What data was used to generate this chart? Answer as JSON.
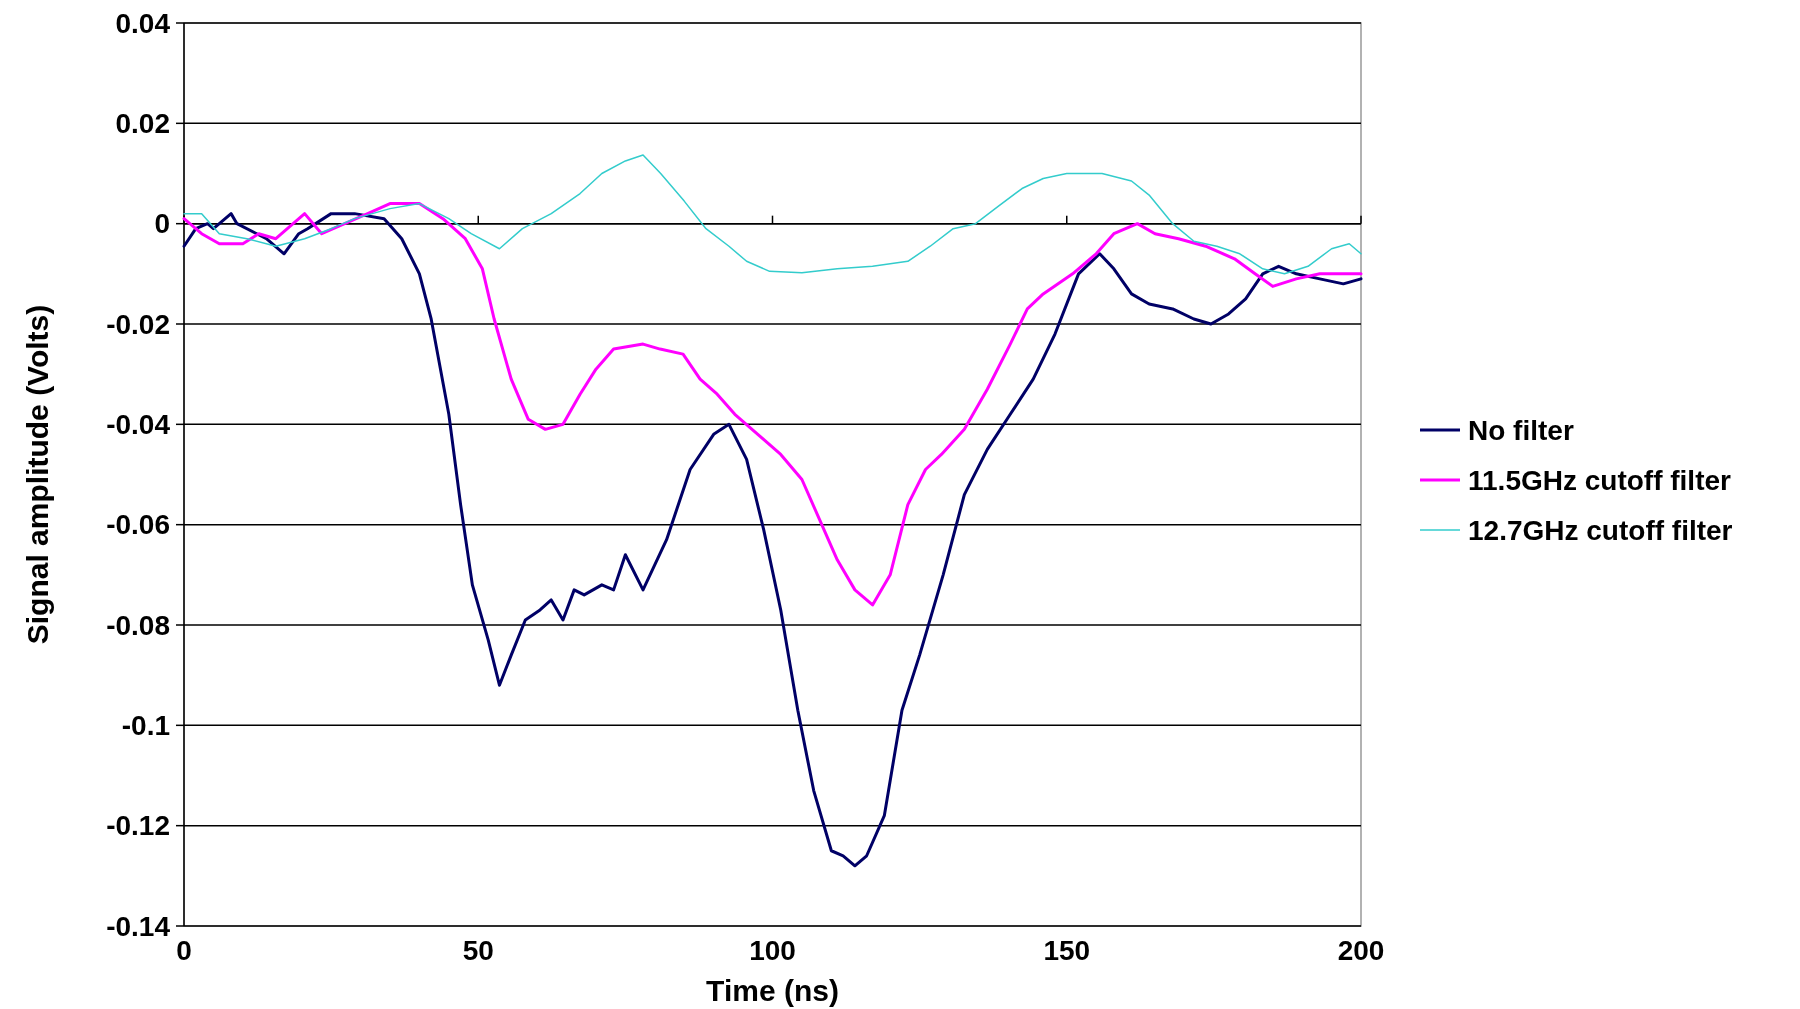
{
  "chart_data": {
    "type": "line",
    "xlabel": "Time (ns)",
    "ylabel": "Signal amplitude (Volts)",
    "xlim": [
      0,
      200
    ],
    "xticks": [
      0,
      50,
      100,
      150,
      200
    ],
    "ylim": [
      -0.14,
      0.04
    ],
    "yticks": [
      -0.14,
      -0.12,
      -0.1,
      -0.08,
      -0.06,
      -0.04,
      -0.02,
      0,
      0.02,
      0.04
    ],
    "grid": "y",
    "legend": "right",
    "marker": "none",
    "line_style": "solid",
    "series": [
      {
        "name": "No filter",
        "color": "#000066",
        "x": [
          0,
          2,
          4,
          5,
          8,
          9,
          14,
          17,
          19.5,
          21,
          25,
          29,
          34,
          37,
          40,
          42,
          45,
          47,
          49,
          51.7,
          53.6,
          55.6,
          58,
          60.5,
          62.4,
          64.4,
          66.3,
          68,
          71,
          73,
          75,
          78,
          82,
          86,
          90,
          92.6,
          95.6,
          98.5,
          101.4,
          104.3,
          107,
          110,
          112,
          114,
          116,
          119,
          122,
          125,
          129,
          132.6,
          136.5,
          140.4,
          144.3,
          148,
          152,
          155.6,
          158,
          161,
          164,
          168,
          171.6,
          174.5,
          177.5,
          180.4,
          183.3,
          186,
          189,
          193,
          197,
          200
        ],
        "values": [
          -0.0045,
          -0.001,
          0,
          -0.001,
          0.002,
          0,
          -0.003,
          -0.006,
          -0.002,
          -0.001,
          0.002,
          0.002,
          0.001,
          -0.003,
          -0.01,
          -0.019,
          -0.038,
          -0.056,
          -0.072,
          -0.083,
          -0.092,
          -0.086,
          -0.079,
          -0.077,
          -0.075,
          -0.079,
          -0.073,
          -0.074,
          -0.072,
          -0.073,
          -0.066,
          -0.073,
          -0.063,
          -0.049,
          -0.042,
          -0.04,
          -0.047,
          -0.061,
          -0.077,
          -0.097,
          -0.113,
          -0.125,
          -0.126,
          -0.128,
          -0.126,
          -0.118,
          -0.097,
          -0.086,
          -0.07,
          -0.054,
          -0.045,
          -0.038,
          -0.031,
          -0.022,
          -0.01,
          -0.006,
          -0.009,
          -0.014,
          -0.016,
          -0.017,
          -0.019,
          -0.02,
          -0.018,
          -0.015,
          -0.01,
          -0.0085,
          -0.01,
          -0.011,
          -0.012,
          -0.011
        ]
      },
      {
        "name": "11.5GHz cutoff filter",
        "color": "#ff00ff",
        "x": [
          0,
          3,
          6,
          10,
          12.7,
          15.6,
          20.5,
          23.4,
          27.3,
          31.2,
          35,
          40,
          44,
          47.8,
          50.7,
          52.7,
          55.6,
          58.5,
          61.4,
          64.4,
          67.3,
          70,
          73,
          78,
          80.9,
          84.8,
          87.7,
          90.6,
          93.6,
          97.5,
          101.4,
          105,
          108,
          111,
          114,
          117,
          120,
          123,
          126,
          128.7,
          132.6,
          136.5,
          140.4,
          143.3,
          146,
          151,
          155,
          158,
          162,
          165,
          169,
          173.6,
          178.5,
          182,
          185,
          189,
          193,
          200
        ],
        "values": [
          0.001,
          -0.002,
          -0.004,
          -0.004,
          -0.002,
          -0.003,
          0.002,
          -0.002,
          0,
          0.002,
          0.004,
          0.004,
          0.001,
          -0.003,
          -0.009,
          -0.019,
          -0.031,
          -0.039,
          -0.041,
          -0.04,
          -0.034,
          -0.029,
          -0.025,
          -0.024,
          -0.025,
          -0.026,
          -0.031,
          -0.034,
          -0.038,
          -0.042,
          -0.046,
          -0.051,
          -0.059,
          -0.067,
          -0.073,
          -0.076,
          -0.07,
          -0.056,
          -0.049,
          -0.046,
          -0.041,
          -0.033,
          -0.024,
          -0.017,
          -0.014,
          -0.01,
          -0.006,
          -0.002,
          0,
          -0.002,
          -0.003,
          -0.0045,
          -0.007,
          -0.01,
          -0.0125,
          -0.011,
          -0.01,
          -0.01
        ]
      },
      {
        "name": "12.7GHz cutoff filter",
        "color": "#33cccc",
        "x": [
          0,
          3,
          6,
          10.7,
          15.6,
          20.5,
          25,
          29,
          35,
          40,
          45,
          48.8,
          53.6,
          57.5,
          62.4,
          67.3,
          71,
          75,
          78,
          81,
          85,
          88.7,
          92.6,
          95.6,
          99.5,
          105,
          111,
          117,
          123,
          126.8,
          130.7,
          134.5,
          138.4,
          142.4,
          146,
          150,
          156,
          161,
          164,
          168,
          171.6,
          175.5,
          179.4,
          183.3,
          187,
          191,
          195,
          198,
          200
        ],
        "values": [
          0.002,
          0.002,
          -0.002,
          -0.003,
          -0.0045,
          -0.003,
          -0.001,
          0.001,
          0.003,
          0.004,
          0.001,
          -0.002,
          -0.005,
          -0.001,
          0.002,
          0.006,
          0.01,
          0.0125,
          0.0137,
          0.01,
          0.0045,
          -0.001,
          -0.0045,
          -0.0075,
          -0.0095,
          -0.0098,
          -0.009,
          -0.0085,
          -0.0075,
          -0.0045,
          -0.001,
          0,
          0.0035,
          0.007,
          0.009,
          0.01,
          0.01,
          0.0085,
          0.0057,
          0,
          -0.0035,
          -0.0045,
          -0.006,
          -0.009,
          -0.01,
          -0.0085,
          -0.005,
          -0.004,
          -0.006
        ]
      }
    ]
  }
}
